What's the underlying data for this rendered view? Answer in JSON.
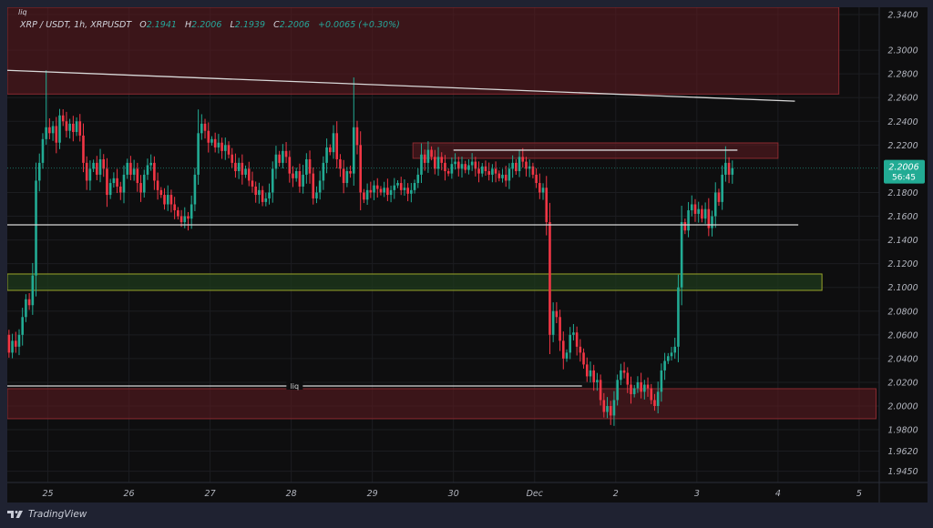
{
  "header": {
    "symbol": "XRP / USDT, 1h, XRPUSDT",
    "o_label": "O",
    "o": "2.1941",
    "h_label": "H",
    "h": "2.2006",
    "l_label": "L",
    "l": "2.1939",
    "c_label": "C",
    "c": "2.2006",
    "change": "+0.0065 (+0.30%)",
    "top_note": "liq"
  },
  "price_badge": {
    "price": "2.2006",
    "countdown": "56:45"
  },
  "footer": {
    "brand": "TradingView",
    "logo_icon": "tradingview-logo-icon"
  },
  "colors": {
    "up": "#22ab94",
    "down": "#f23645",
    "zone_red": "#5a1a1f",
    "zone_green": "#1e3a1c",
    "zone_green_border": "#9aa52a",
    "badge": "#22ab94"
  },
  "chart_data": {
    "type": "candlestick",
    "interval": "1h",
    "ylim": [
      1.943,
      2.345
    ],
    "y_ticks": [
      "2.3400",
      "2.3000",
      "2.2800",
      "2.2600",
      "2.2400",
      "2.2200",
      "2.1800",
      "2.1600",
      "2.1400",
      "2.1200",
      "2.1000",
      "2.0800",
      "2.0600",
      "2.0400",
      "2.0200",
      "2.0000",
      "1.9800",
      "1.9620",
      "1.9450"
    ],
    "x_ticks": [
      {
        "label": "25",
        "index": 12
      },
      {
        "label": "26",
        "index": 36
      },
      {
        "label": "27",
        "index": 60
      },
      {
        "label": "28",
        "index": 84
      },
      {
        "label": "29",
        "index": 108
      },
      {
        "label": "30",
        "index": 132
      },
      {
        "label": "Dec",
        "index": 156
      },
      {
        "label": "2",
        "index": 180
      },
      {
        "label": "3",
        "index": 204
      },
      {
        "label": "4",
        "index": 228
      },
      {
        "label": "5",
        "index": 252
      }
    ],
    "first_open": 2.06,
    "closes": [
      2.045,
      2.055,
      2.05,
      2.06,
      2.075,
      2.09,
      2.085,
      2.11,
      2.19,
      2.205,
      2.225,
      2.235,
      2.23,
      2.236,
      2.222,
      2.245,
      2.24,
      2.232,
      2.238,
      2.231,
      2.24,
      2.228,
      2.205,
      2.19,
      2.2,
      2.205,
      2.195,
      2.208,
      2.2,
      2.178,
      2.188,
      2.192,
      2.185,
      2.18,
      2.195,
      2.205,
      2.195,
      2.2,
      2.188,
      2.18,
      2.195,
      2.203,
      2.205,
      2.19,
      2.182,
      2.178,
      2.17,
      2.178,
      2.17,
      2.165,
      2.16,
      2.155,
      2.16,
      2.158,
      2.17,
      2.195,
      2.23,
      2.238,
      2.232,
      2.222,
      2.225,
      2.218,
      2.222,
      2.215,
      2.22,
      2.212,
      2.205,
      2.198,
      2.205,
      2.195,
      2.2,
      2.19,
      2.185,
      2.178,
      2.182,
      2.172,
      2.175,
      2.18,
      2.2,
      2.212,
      2.205,
      2.215,
      2.21,
      2.196,
      2.192,
      2.198,
      2.185,
      2.195,
      2.208,
      2.196,
      2.175,
      2.18,
      2.19,
      2.205,
      2.218,
      2.214,
      2.23,
      2.208,
      2.2,
      2.188,
      2.198,
      2.196,
      2.235,
      2.22,
      2.18,
      2.174,
      2.182,
      2.18,
      2.186,
      2.183,
      2.18,
      2.184,
      2.178,
      2.182,
      2.186,
      2.188,
      2.182,
      2.184,
      2.179,
      2.182,
      2.188,
      2.195,
      2.212,
      2.205,
      2.216,
      2.21,
      2.2,
      2.21,
      2.205,
      2.198,
      2.196,
      2.204,
      2.206,
      2.2,
      2.204,
      2.199,
      2.203,
      2.206,
      2.2,
      2.196,
      2.202,
      2.198,
      2.195,
      2.2,
      2.196,
      2.192,
      2.195,
      2.19,
      2.2,
      2.205,
      2.198,
      2.21,
      2.206,
      2.2,
      2.202,
      2.195,
      2.188,
      2.18,
      2.184,
      2.155,
      2.06,
      2.08,
      2.075,
      2.055,
      2.04,
      2.045,
      2.06,
      2.062,
      2.05,
      2.045,
      2.035,
      2.025,
      2.03,
      2.02,
      2.022,
      2.005,
      1.995,
      2.0,
      1.992,
      2.005,
      2.022,
      2.03,
      2.028,
      2.018,
      2.01,
      2.015,
      2.02,
      2.012,
      2.018,
      2.015,
      2.005,
      2.0,
      2.012,
      2.03,
      2.038,
      2.042,
      2.045,
      2.05,
      2.1,
      2.155,
      2.148,
      2.165,
      2.17,
      2.162,
      2.166,
      2.158,
      2.166,
      2.15,
      2.16,
      2.18,
      2.172,
      2.195,
      2.205,
      2.195,
      2.2006
    ],
    "high_overrides": {
      "11": 2.283,
      "56": 2.25,
      "102": 2.277,
      "212": 2.219
    },
    "low_overrides": {
      "53": 2.148,
      "104": 2.165,
      "178": 1.984
    },
    "last_price": 2.2006,
    "drawings": {
      "zones": [
        {
          "name": "supply-zone-top",
          "from_index": 0,
          "to_index": 246,
          "top": 2.345,
          "bottom": 2.263,
          "color": "red"
        },
        {
          "name": "supply-zone-mid",
          "from_index": 120,
          "to_index": 228,
          "top": 2.2218,
          "bottom": 2.2088,
          "color": "red"
        },
        {
          "name": "demand-zone-green",
          "from_index": 0,
          "to_index": 241,
          "top": 2.1113,
          "bottom": 2.0975,
          "color": "green"
        },
        {
          "name": "liquidity-zone-bottom",
          "from_index": 0,
          "to_index": 257,
          "top": 2.0146,
          "bottom": 1.9893,
          "color": "red"
        }
      ],
      "lines": [
        {
          "name": "descending-trendline",
          "from_index": 0,
          "to_index": 233,
          "p1": 2.283,
          "p2": 2.257
        },
        {
          "name": "range-high-line",
          "from_index": 132,
          "to_index": 216,
          "p1": 2.2157,
          "p2": 2.2157
        },
        {
          "name": "support-line",
          "from_index": 0,
          "to_index": 234,
          "p1": 2.1527,
          "p2": 2.1527
        },
        {
          "name": "liq-line",
          "from_index": 0,
          "to_index": 170,
          "p1": 2.0169,
          "p2": 2.0169,
          "label": "liq"
        }
      ]
    }
  }
}
